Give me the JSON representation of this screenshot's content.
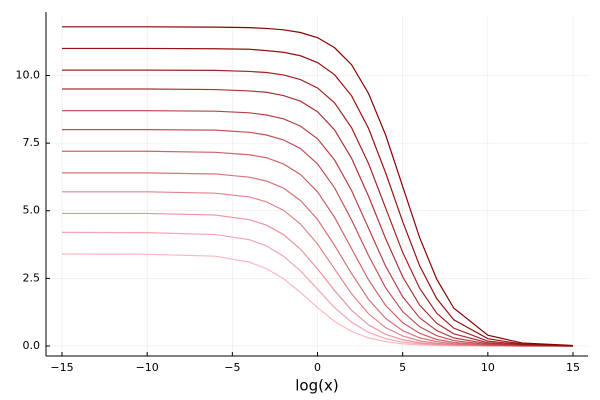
{
  "chart_data": {
    "type": "line",
    "xlabel": "log(x)",
    "x": [
      -15,
      -10,
      -6,
      -4,
      -3,
      -2,
      -1,
      0,
      1,
      2,
      3,
      4,
      5,
      6,
      7,
      8,
      10,
      12,
      15
    ],
    "series": [
      {
        "color": "#ffb6c1",
        "values": [
          3.4,
          3.39,
          3.32,
          3.1,
          2.86,
          2.49,
          1.98,
          1.42,
          0.91,
          0.54,
          0.3,
          0.16,
          0.08,
          0.04,
          0.02,
          0.01,
          0,
          0,
          0
        ]
      },
      {
        "color": "#f5a6b0",
        "values": [
          4.2,
          4.19,
          4.12,
          3.93,
          3.7,
          3.32,
          2.78,
          2.1,
          1.42,
          0.88,
          0.5,
          0.27,
          0.14,
          0.08,
          0.04,
          0.02,
          0.01,
          0,
          0
        ]
      },
      {
        "color": "#ea959e",
        "values": [
          4.9,
          4.9,
          4.84,
          4.67,
          4.47,
          4.12,
          3.58,
          2.85,
          2.05,
          1.32,
          0.78,
          0.43,
          0.23,
          0.12,
          0.06,
          0.03,
          0.01,
          0,
          0
        ]
      },
      {
        "color": "#e0858d",
        "values": [
          5.7,
          5.7,
          5.65,
          5.51,
          5.33,
          5.02,
          4.51,
          3.77,
          2.85,
          1.93,
          1.19,
          0.68,
          0.37,
          0.19,
          0.1,
          0.05,
          0.01,
          0,
          0
        ]
      },
      {
        "color": "#d5747b",
        "values": [
          6.4,
          6.4,
          6.36,
          6.24,
          6.1,
          5.84,
          5.38,
          4.68,
          3.72,
          2.68,
          1.72,
          1.02,
          0.57,
          0.3,
          0.16,
          0.08,
          0.02,
          0.01,
          0
        ]
      },
      {
        "color": "#cb646a",
        "values": [
          7.2,
          7.2,
          7.16,
          7.07,
          6.96,
          6.73,
          6.34,
          5.7,
          4.76,
          3.6,
          2.44,
          1.5,
          0.86,
          0.47,
          0.24,
          0.13,
          0.03,
          0.01,
          0
        ]
      },
      {
        "color": "#c05358",
        "values": [
          8,
          8,
          7.98,
          7.9,
          7.8,
          7.62,
          7.3,
          6.73,
          5.85,
          4.66,
          3.34,
          2.15,
          1.27,
          0.71,
          0.38,
          0.2,
          0.05,
          0.01,
          0
        ]
      },
      {
        "color": "#b64347",
        "values": [
          8.7,
          8.7,
          8.68,
          8.62,
          8.54,
          8.4,
          8.13,
          7.66,
          6.88,
          5.75,
          4.35,
          2.95,
          1.82,
          1.04,
          0.57,
          0.3,
          0.08,
          0.02,
          0
        ]
      },
      {
        "color": "#ab3235",
        "values": [
          9.5,
          9.5,
          9.48,
          9.43,
          9.38,
          9.26,
          9.05,
          8.66,
          7.99,
          6.94,
          5.53,
          3.97,
          2.56,
          1.51,
          0.84,
          0.45,
          0.12,
          0.03,
          0
        ]
      },
      {
        "color": "#a12224",
        "values": [
          10.2,
          10.2,
          10.19,
          10.15,
          10.11,
          10.02,
          9.85,
          9.54,
          8.99,
          8.07,
          6.74,
          5.1,
          3.46,
          2.13,
          1.21,
          0.66,
          0.18,
          0.05,
          0.01
        ]
      },
      {
        "color": "#961112",
        "values": [
          11,
          11,
          10.99,
          10.97,
          10.92,
          10.86,
          10.73,
          10.48,
          10.03,
          9.25,
          8.04,
          6.4,
          4.6,
          2.96,
          1.75,
          0.97,
          0.27,
          0.07,
          0.01
        ]
      },
      {
        "color": "#8b0000",
        "values": [
          11.8,
          11.8,
          11.79,
          11.77,
          11.74,
          11.69,
          11.59,
          11.4,
          11.03,
          10.4,
          9.33,
          7.8,
          5.9,
          4,
          2.47,
          1.4,
          0.4,
          0.11,
          0.02
        ]
      }
    ],
    "xlim": [
      -15.94,
      15.88
    ],
    "xticks": [
      {
        "value": -15,
        "label": "−15"
      },
      {
        "value": -10,
        "label": "−10"
      },
      {
        "value": -5,
        "label": "−5"
      },
      0,
      5,
      10,
      15
    ],
    "ylim": [
      -0.37,
      12.2
    ],
    "yticks": [
      {
        "value": 0,
        "label": "0.0"
      },
      {
        "value": 2.5,
        "label": "2.5"
      },
      {
        "value": 5,
        "label": "5.0"
      },
      {
        "value": 7.5,
        "label": "7.5"
      },
      {
        "value": 10,
        "label": "10.0"
      }
    ],
    "grid": true
  }
}
